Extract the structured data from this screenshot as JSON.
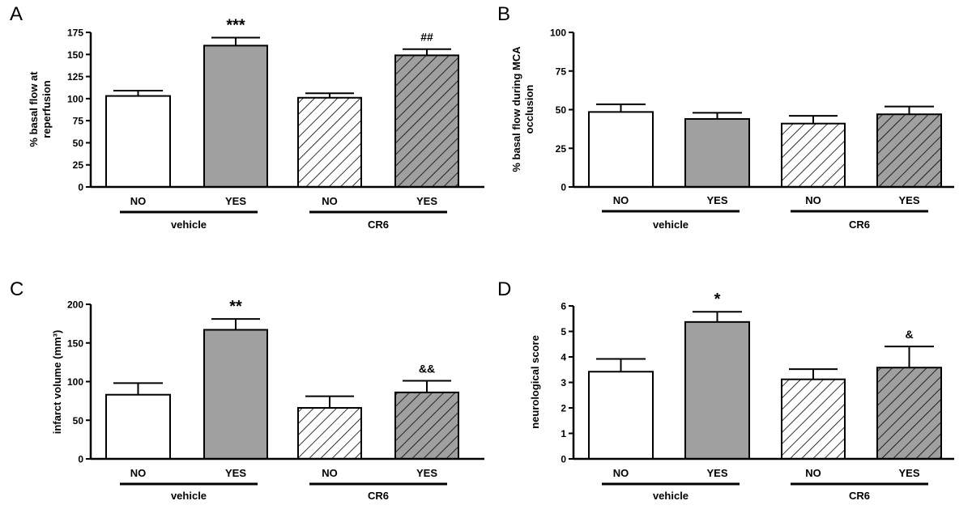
{
  "chart_data": [
    {
      "panel_letter": "A",
      "type": "bar",
      "ylabel_lines": [
        "% basal flow at",
        "reperfusion"
      ],
      "ylim": [
        0,
        175
      ],
      "yticks": [
        "0",
        "25",
        "50",
        "75",
        "100",
        "125",
        "150",
        "175"
      ],
      "categories": [
        "NO",
        "YES",
        "NO",
        "YES"
      ],
      "values": [
        103,
        160,
        101,
        149
      ],
      "errors": [
        6,
        9,
        5,
        7
      ],
      "annotations": [
        "",
        "***",
        "",
        "##"
      ],
      "groups": [
        "vehicle",
        "CR6"
      ],
      "bar_styles": [
        "white",
        "gray",
        "hatch-white",
        "hatch-gray"
      ]
    },
    {
      "panel_letter": "B",
      "type": "bar",
      "ylabel_lines": [
        "% basal flow during MCA",
        "occlusion"
      ],
      "ylim": [
        0,
        100
      ],
      "yticks": [
        "0",
        "25",
        "50",
        "75",
        "100"
      ],
      "categories": [
        "NO",
        "YES",
        "NO",
        "YES"
      ],
      "values": [
        48.5,
        44,
        41,
        47
      ],
      "errors": [
        5,
        4,
        5,
        5
      ],
      "annotations": [
        "",
        "",
        "",
        ""
      ],
      "groups": [
        "vehicle",
        "CR6"
      ],
      "bar_styles": [
        "white",
        "gray",
        "hatch-white",
        "hatch-gray"
      ]
    },
    {
      "panel_letter": "C",
      "type": "bar",
      "ylabel_lines": [
        "infarct volume (mm³)"
      ],
      "ylim": [
        0,
        200
      ],
      "yticks": [
        "0",
        "50",
        "100",
        "150",
        "200"
      ],
      "categories": [
        "NO",
        "YES",
        "NO",
        "YES"
      ],
      "values": [
        83,
        167,
        66,
        86
      ],
      "errors": [
        15,
        14,
        15,
        15
      ],
      "annotations": [
        "",
        "**",
        "",
        "&&"
      ],
      "groups": [
        "vehicle",
        "CR6"
      ],
      "bar_styles": [
        "white",
        "gray",
        "hatch-white",
        "hatch-gray"
      ]
    },
    {
      "panel_letter": "D",
      "type": "bar",
      "ylabel_lines": [
        "neurological score"
      ],
      "ylim": [
        0,
        6
      ],
      "yticks": [
        "0",
        "1",
        "2",
        "3",
        "4",
        "5",
        "6"
      ],
      "categories": [
        "NO",
        "YES",
        "NO",
        "YES"
      ],
      "values": [
        3.42,
        5.37,
        3.12,
        3.58
      ],
      "errors": [
        0.5,
        0.4,
        0.4,
        0.83
      ],
      "annotations": [
        "",
        "*",
        "",
        "&"
      ],
      "groups": [
        "vehicle",
        "CR6"
      ],
      "bar_styles": [
        "white",
        "gray",
        "hatch-white",
        "hatch-gray"
      ]
    }
  ],
  "colors": {
    "gray_bar": "#a0a0a0",
    "white_bar": "#ffffff",
    "stroke": "#000000"
  }
}
